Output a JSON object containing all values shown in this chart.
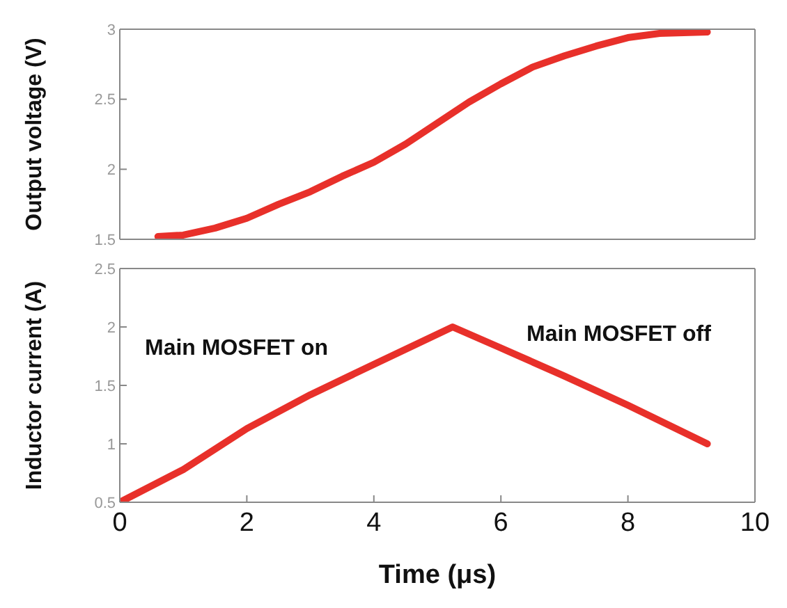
{
  "chart_data": [
    {
      "type": "line",
      "ylabel": "Output voltage (V)",
      "xlim": [
        0,
        10
      ],
      "xticks": [
        0,
        2,
        4,
        6,
        8,
        10
      ],
      "ylim": [
        1.5,
        3
      ],
      "yticks": [
        1.5,
        2,
        2.5,
        3
      ],
      "tick_labels": "y",
      "grid": false,
      "legend": false,
      "marker": "none",
      "line_style": "solid",
      "series": [
        {
          "color": "#e8302a",
          "x": [
            0.6,
            1.0,
            1.5,
            2.0,
            2.5,
            3.0,
            3.5,
            4.0,
            4.5,
            5.0,
            5.5,
            6.0,
            6.5,
            7.0,
            7.5,
            8.0,
            8.5,
            9.25
          ],
          "values": [
            1.52,
            1.53,
            1.58,
            1.65,
            1.75,
            1.84,
            1.95,
            2.05,
            2.18,
            2.33,
            2.48,
            2.61,
            2.73,
            2.81,
            2.88,
            2.94,
            2.97,
            2.98
          ]
        }
      ]
    },
    {
      "type": "line",
      "xlabel": "Time (μs)",
      "ylabel": "Inductor current (A)",
      "xlim": [
        0,
        10
      ],
      "xticks": [
        0,
        2,
        4,
        6,
        8,
        10
      ],
      "ylim": [
        0.5,
        2.5
      ],
      "yticks": [
        0.5,
        1,
        1.5,
        2,
        2.5
      ],
      "grid": false,
      "legend": false,
      "marker": "none",
      "line_style": "solid",
      "annotations": [
        "Main MOSFET on",
        "Main MOSFET off"
      ],
      "series": [
        {
          "color": "#e8302a",
          "x": [
            0,
            1,
            2,
            3,
            4,
            5.24,
            6,
            7,
            8,
            9.25
          ],
          "values": [
            0.5,
            0.78,
            1.13,
            1.42,
            1.68,
            2.0,
            1.82,
            1.58,
            1.33,
            1.0
          ]
        }
      ]
    }
  ]
}
